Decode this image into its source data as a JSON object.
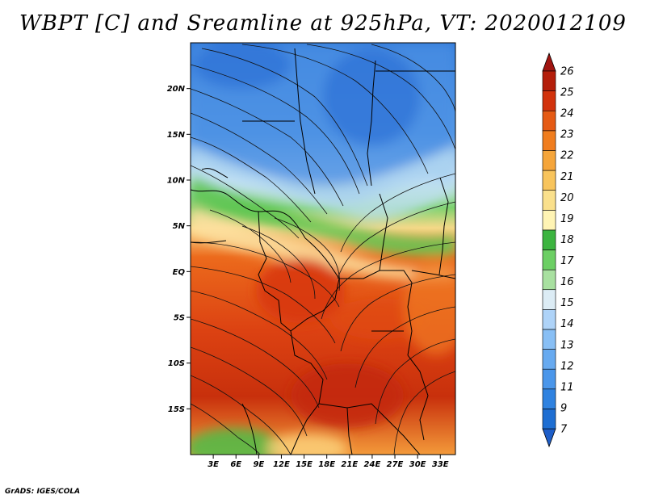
{
  "title": "WBPT [C] and Sreamline at 925hPa, VT: 2020012109",
  "footer": "GrADS: IGES/COLA",
  "map": {
    "lon_range": [
      0,
      35
    ],
    "lat_range": [
      -20,
      25
    ],
    "lat_ticks": [
      "20N",
      "15N",
      "10N",
      "5N",
      "EQ",
      "5S",
      "10S",
      "15S"
    ],
    "lat_tick_values": [
      20,
      15,
      10,
      5,
      0,
      -5,
      -10,
      -15
    ],
    "lon_ticks": [
      "3E",
      "6E",
      "9E",
      "12E",
      "15E",
      "18E",
      "21E",
      "24E",
      "27E",
      "30E",
      "33E"
    ],
    "lon_tick_values": [
      3,
      6,
      9,
      12,
      15,
      18,
      21,
      24,
      27,
      30,
      33
    ]
  },
  "colorbar": {
    "labels": [
      "7",
      "9",
      "11",
      "12",
      "13",
      "14",
      "15",
      "16",
      "17",
      "18",
      "19",
      "20",
      "21",
      "22",
      "23",
      "24",
      "25",
      "26"
    ],
    "colors": [
      "#1e6ed2",
      "#2f82e0",
      "#4a96ea",
      "#67aaf0",
      "#88bff5",
      "#aed3f8",
      "#dcecf5",
      "#a8e0a0",
      "#6ccf64",
      "#3cb440",
      "#fff4b4",
      "#fae08c",
      "#f8c45c",
      "#f5a53a",
      "#f07d1e",
      "#e55a14",
      "#d2320c",
      "#b41e0a"
    ],
    "below_color": "#1e5ec8",
    "above_color": "#a01410"
  }
}
